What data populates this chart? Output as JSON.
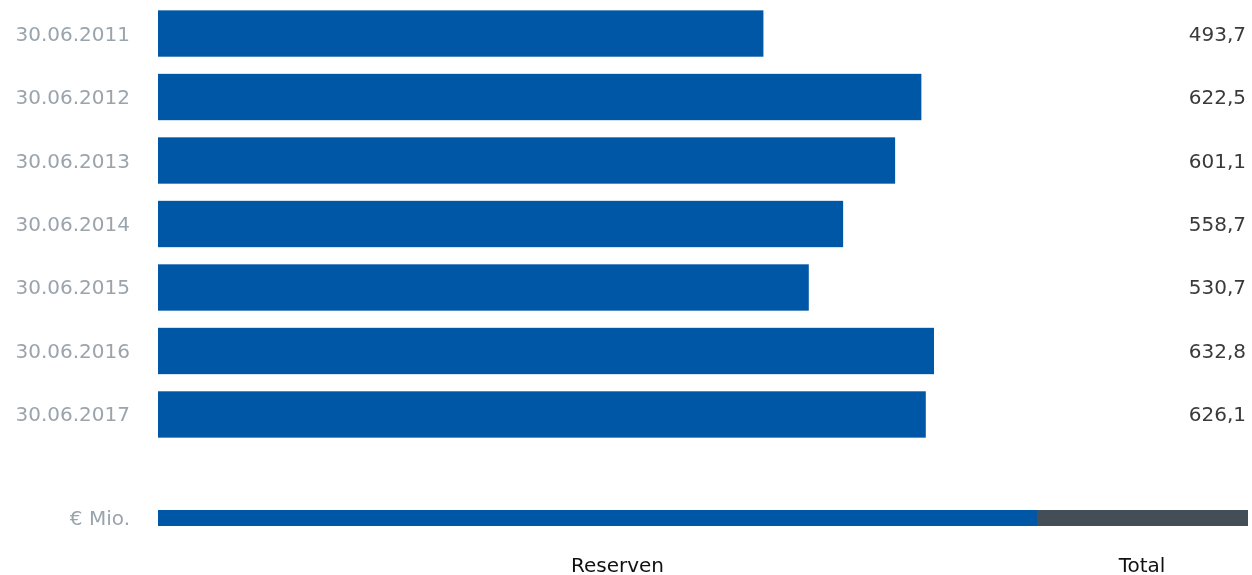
{
  "chart_data": {
    "type": "bar",
    "orientation": "horizontal",
    "ylabel": "€ Mio.",
    "categories": [
      "30.06.2011",
      "30.06.2012",
      "30.06.2013",
      "30.06.2014",
      "30.06.2015",
      "30.06.2016",
      "30.06.2017"
    ],
    "series": [
      {
        "name": "Reserven",
        "color": "#0057a6",
        "values": [
          493.7,
          622.5,
          601.1,
          558.7,
          530.7,
          632.8,
          626.1
        ],
        "value_labels": [
          "493,7",
          "622,5",
          "601,1",
          "558,7",
          "530,7",
          "632,8",
          "626,1"
        ]
      }
    ],
    "legend": "bottom",
    "annotations": [
      "Total"
    ]
  }
}
